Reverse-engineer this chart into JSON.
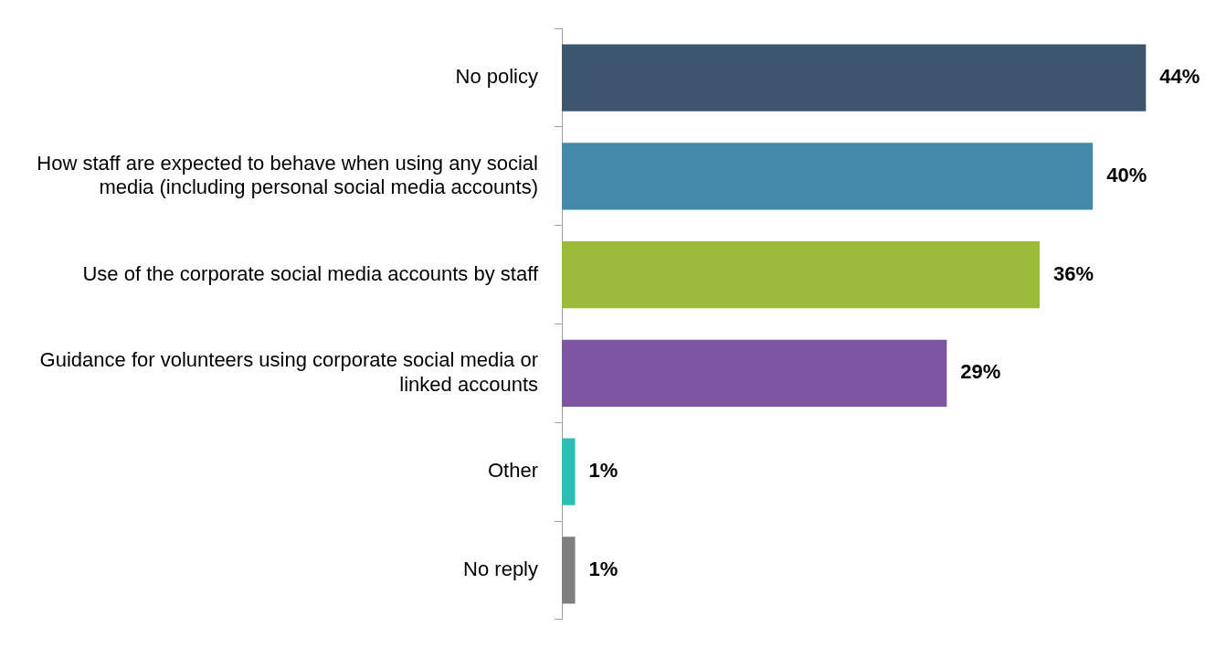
{
  "chart_data": {
    "type": "bar",
    "orientation": "horizontal",
    "categories": [
      "No policy",
      "How staff are expected to behave when using any social media (including personal social media accounts)",
      "Use of the corporate social media accounts by staff",
      "Guidance for volunteers using corporate social media or linked accounts",
      "Other",
      "No reply"
    ],
    "values": [
      44,
      40,
      36,
      29,
      1,
      1
    ],
    "colors": [
      "#3d566e",
      "#4589aa",
      "#9bbb3b",
      "#7d55a0",
      "#2bbfb3",
      "#7f7f7f"
    ],
    "value_labels": [
      "44%",
      "40%",
      "36%",
      "29%",
      "1%",
      "1%"
    ],
    "grid": false,
    "legend": false,
    "tick_labels": "y"
  }
}
